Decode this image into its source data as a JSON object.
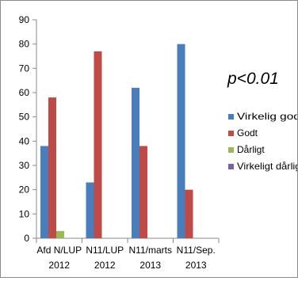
{
  "chart_data": {
    "type": "bar",
    "title": "",
    "annotation": "p<0.01",
    "xlabel": "",
    "ylabel": "",
    "ylim": [
      0,
      90
    ],
    "yticks": [
      0,
      10,
      20,
      30,
      40,
      50,
      60,
      70,
      80,
      90
    ],
    "grid": false,
    "legend_position": "right",
    "categories": [
      [
        "Afd N/LUP",
        "2012"
      ],
      [
        "N11/LUP",
        "2012"
      ],
      [
        "N11/marts",
        "2013"
      ],
      [
        "N11/Sep.",
        "2013"
      ]
    ],
    "series": [
      {
        "name": "Virkelig godt",
        "color": "#4a7ebb",
        "values": [
          38,
          23,
          62,
          80
        ]
      },
      {
        "name": "Godt",
        "color": "#be4b48",
        "values": [
          58,
          77,
          38,
          20
        ]
      },
      {
        "name": "Dårligt",
        "color": "#98b954",
        "values": [
          3,
          0,
          0,
          0
        ]
      },
      {
        "name": "Virkeligt dårligt",
        "color": "#7d60a0",
        "values": [
          0,
          0,
          0,
          0
        ]
      }
    ]
  }
}
